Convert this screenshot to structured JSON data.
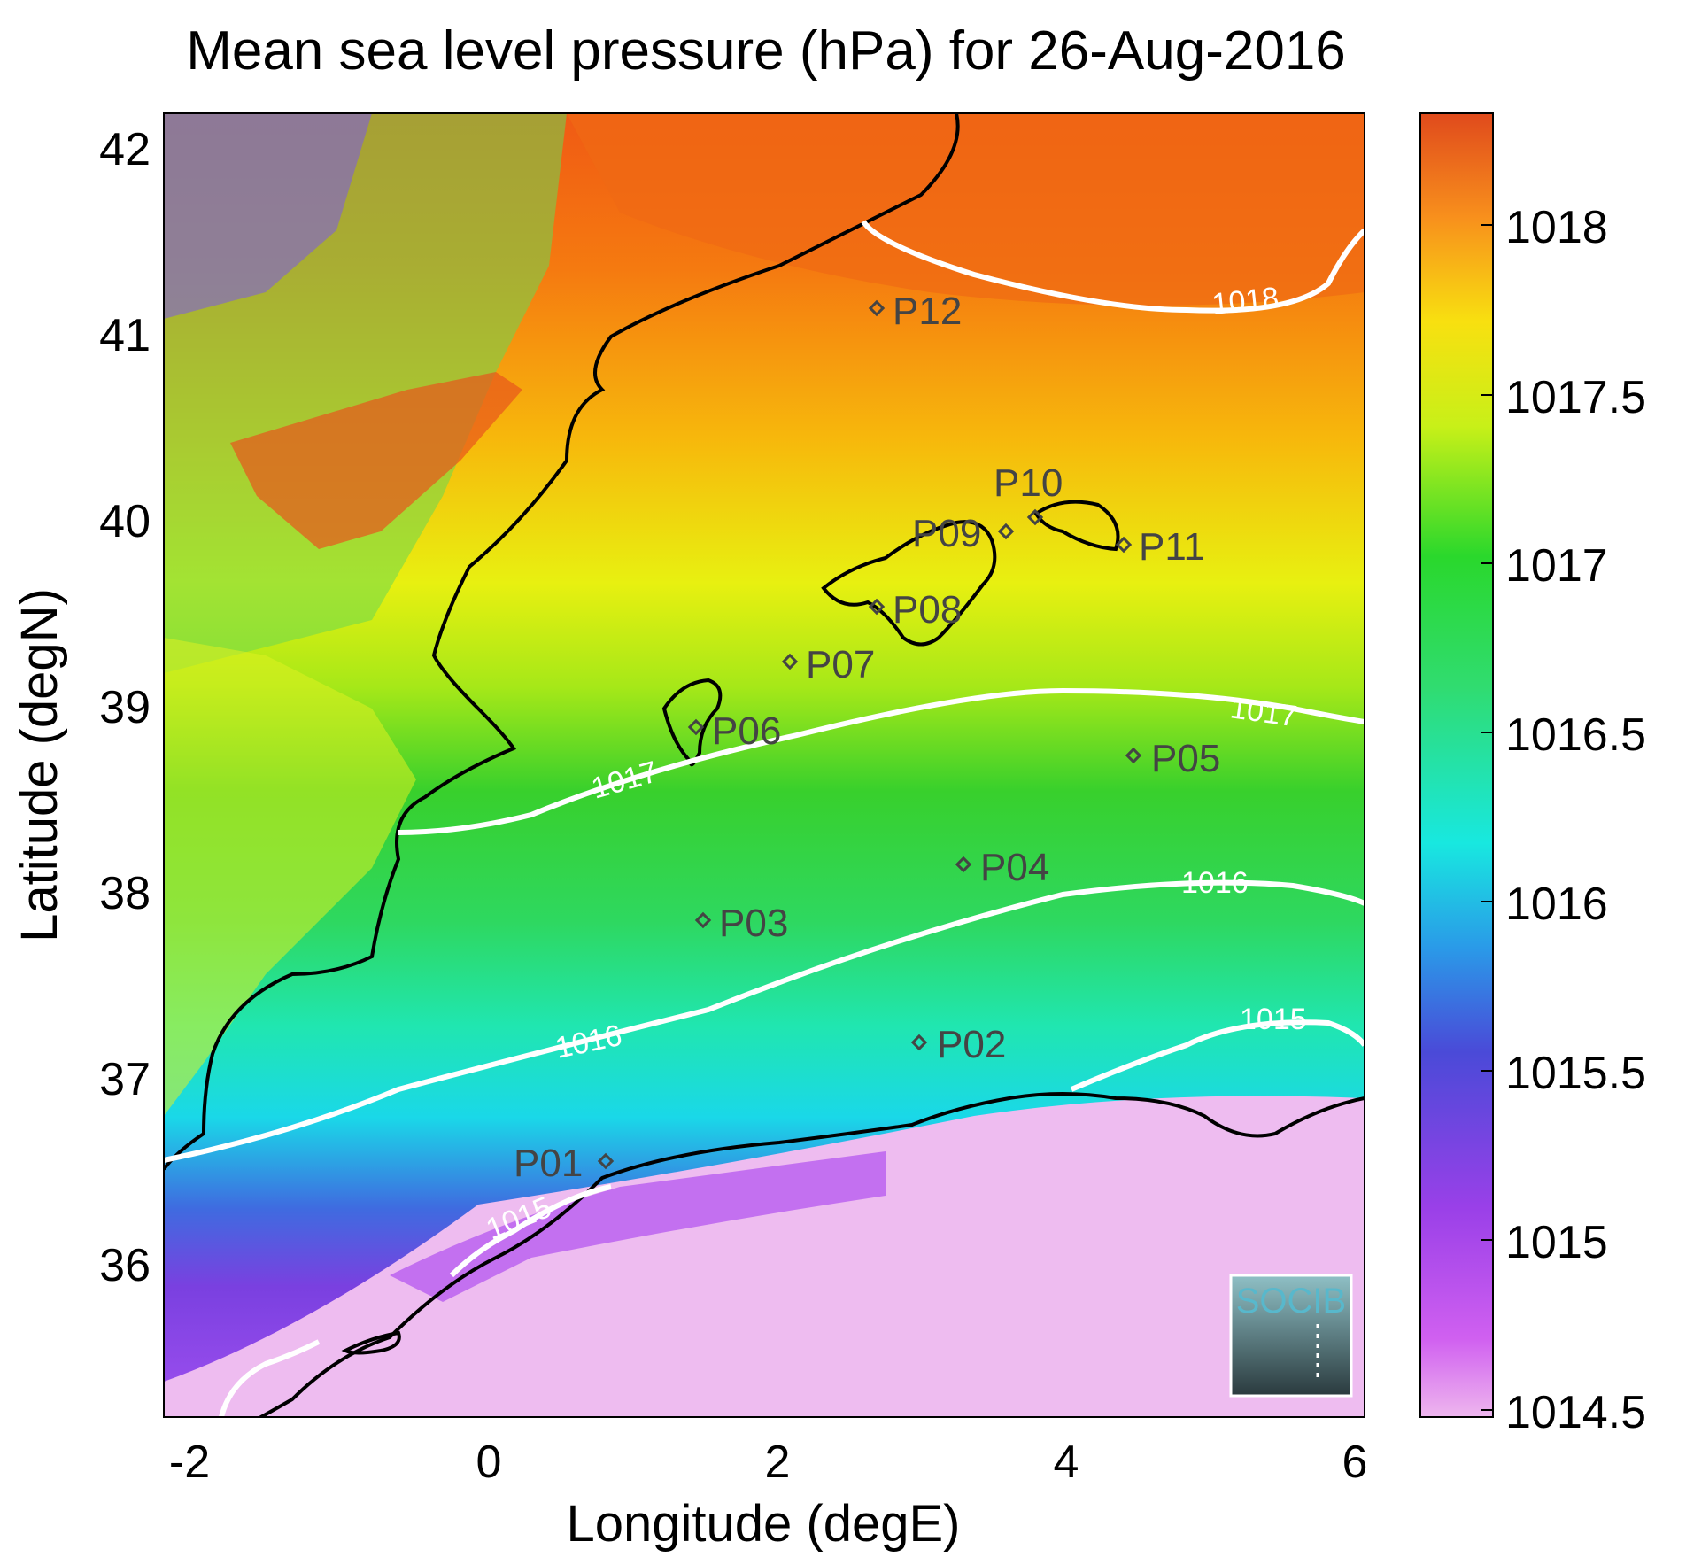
{
  "title": "Mean sea level pressure (hPa) for 26-Aug-2016",
  "xlabel": "Longitude (degE)",
  "ylabel": "Latitude (degN)",
  "x_ticks": [
    "-2",
    "0",
    "2",
    "4",
    "6"
  ],
  "y_ticks": [
    "36",
    "37",
    "38",
    "39",
    "40",
    "41",
    "42"
  ],
  "colorbar_ticks": [
    "1014.5",
    "1015",
    "1015.5",
    "1016",
    "1016.5",
    "1017",
    "1017.5",
    "1018"
  ],
  "contour_labels": [
    "1018",
    "1017",
    "1017",
    "1016",
    "1016",
    "1015",
    "1015"
  ],
  "stations": [
    "P01",
    "P02",
    "P03",
    "P04",
    "P05",
    "P06",
    "P07",
    "P08",
    "P09",
    "P10",
    "P11",
    "P12"
  ],
  "logo_text": "SOCIB",
  "colors": {
    "contour": "#ffffff",
    "coast": "#000000",
    "station": "#444444",
    "logo": "#58b8cc"
  }
}
